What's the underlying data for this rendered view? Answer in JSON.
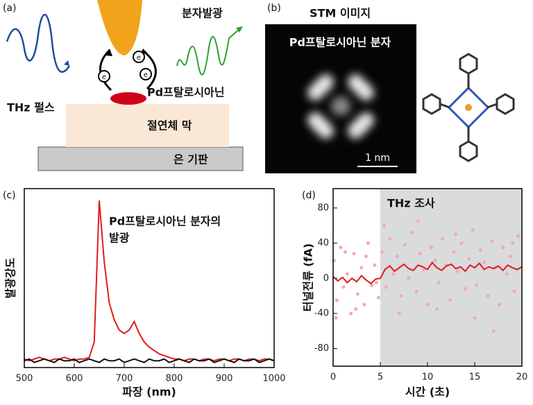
{
  "panel_labels": [
    "(a)",
    "(b)",
    "(c)",
    "(d)"
  ],
  "diagram": {
    "emission": "분자발광",
    "pulse": "THz 펄스",
    "molecule": "Pd프탈로시아닌",
    "insulator": "절연체 막",
    "substrate": "은 기판",
    "electrons": [
      "e",
      "e",
      "e"
    ]
  },
  "stm_image": {
    "title": "STM 이미지",
    "caption": "Pd프탈로시아닌 분자",
    "scale_bar": "1 nm"
  },
  "chart_data": [
    {
      "type": "line",
      "xlabel": "파장 (nm)",
      "ylabel": "발광강도",
      "annotation": [
        "Pd프탈로시아닌 분자의",
        "발광"
      ],
      "xlim": [
        500,
        1000
      ],
      "ylim": [
        0,
        105
      ],
      "xticks": [
        500,
        600,
        700,
        800,
        900,
        1000
      ],
      "x": [
        500,
        510,
        520,
        530,
        540,
        550,
        560,
        570,
        580,
        590,
        600,
        610,
        620,
        630,
        640,
        650,
        660,
        670,
        680,
        690,
        700,
        710,
        720,
        730,
        740,
        750,
        760,
        770,
        780,
        790,
        800,
        810,
        820,
        830,
        840,
        850,
        860,
        870,
        880,
        890,
        900,
        910,
        920,
        930,
        940,
        950,
        960,
        970,
        980,
        990,
        1000
      ],
      "series": [
        {
          "color": "#e31a1c",
          "values": [
            5,
            4,
            5,
            6,
            5,
            4,
            5,
            5,
            6,
            5,
            4,
            5,
            5,
            6,
            15,
            98,
            62,
            38,
            28,
            22,
            20,
            22,
            27,
            20,
            15,
            12,
            10,
            8,
            7,
            6,
            5,
            5,
            4,
            5,
            5,
            4,
            5,
            5,
            4,
            5,
            5,
            4,
            5,
            5,
            4,
            5,
            5,
            4,
            5,
            5,
            4
          ]
        },
        {
          "color": "#111111",
          "values": [
            4,
            5,
            3,
            4,
            5,
            4,
            3,
            5,
            4,
            4,
            5,
            3,
            4,
            5,
            4,
            3,
            5,
            4,
            4,
            5,
            3,
            4,
            5,
            4,
            3,
            5,
            4,
            4,
            5,
            3,
            4,
            5,
            4,
            3,
            5,
            4,
            4,
            5,
            3,
            4,
            5,
            4,
            3,
            5,
            4,
            4,
            5,
            3,
            4,
            5,
            4
          ]
        }
      ]
    },
    {
      "type": "line",
      "xlabel": "시간 (초)",
      "ylabel": "터널전류 (fA)",
      "xlim": [
        0,
        20
      ],
      "ylim": [
        -100,
        102
      ],
      "xticks": [
        0,
        5,
        10,
        15,
        20
      ],
      "yticks": [
        -80,
        -40,
        0,
        40,
        80
      ],
      "shaded_region": {
        "x": [
          5,
          20
        ],
        "label": "THz 조사",
        "color": "#d9dbdc"
      },
      "series": [
        {
          "kind": "scatter",
          "color": "#f5a9a9",
          "x": [
            0.1,
            0.4,
            0.8,
            1.1,
            1.5,
            1.9,
            2.2,
            2.6,
            3.0,
            3.3,
            3.7,
            4.1,
            4.4,
            4.8,
            0.3,
            1.3,
            2.4,
            3.5,
            4.6,
            5.2,
            5.6,
            6.0,
            6.4,
            6.8,
            7.2,
            7.6,
            8.0,
            8.4,
            8.8,
            9.2,
            9.6,
            10.0,
            10.4,
            10.8,
            11.2,
            11.6,
            12.0,
            12.4,
            12.8,
            13.2,
            13.6,
            14.0,
            14.4,
            14.8,
            15.2,
            15.6,
            16.0,
            16.4,
            16.8,
            17.2,
            17.6,
            18.0,
            18.4,
            18.8,
            19.2,
            19.6,
            5.4,
            7.0,
            9.0,
            11.0,
            13.0,
            15.0,
            17.0,
            19.0
          ],
          "values": [
            20,
            -25,
            35,
            -10,
            5,
            -40,
            28,
            -18,
            12,
            -30,
            40,
            -8,
            15,
            -22,
            -45,
            30,
            -35,
            25,
            -5,
            30,
            -10,
            45,
            5,
            25,
            -20,
            38,
            0,
            52,
            -15,
            28,
            10,
            -30,
            35,
            20,
            -5,
            45,
            15,
            -25,
            30,
            8,
            40,
            -12,
            22,
            55,
            -8,
            32,
            18,
            -20,
            42,
            12,
            -30,
            35,
            5,
            25,
            -15,
            48,
            60,
            -40,
            65,
            -35,
            50,
            -45,
            -60,
            40
          ]
        },
        {
          "kind": "line",
          "color": "#e31a1c",
          "x": [
            0,
            0.5,
            1,
            1.5,
            2,
            2.5,
            3,
            3.5,
            4,
            4.5,
            5,
            5.5,
            6,
            6.5,
            7,
            7.5,
            8,
            8.5,
            9,
            9.5,
            10,
            10.5,
            11,
            11.5,
            12,
            12.5,
            13,
            13.5,
            14,
            14.5,
            15,
            15.5,
            16,
            16.5,
            17,
            17.5,
            18,
            18.5,
            19,
            19.5,
            20
          ],
          "values": [
            2,
            -3,
            1,
            -5,
            0,
            -4,
            3,
            -2,
            -6,
            -1,
            0,
            10,
            14,
            8,
            12,
            16,
            11,
            9,
            15,
            13,
            10,
            18,
            12,
            9,
            14,
            16,
            11,
            13,
            8,
            15,
            12,
            17,
            10,
            13,
            11,
            14,
            9,
            15,
            12,
            10,
            13
          ]
        }
      ]
    }
  ]
}
